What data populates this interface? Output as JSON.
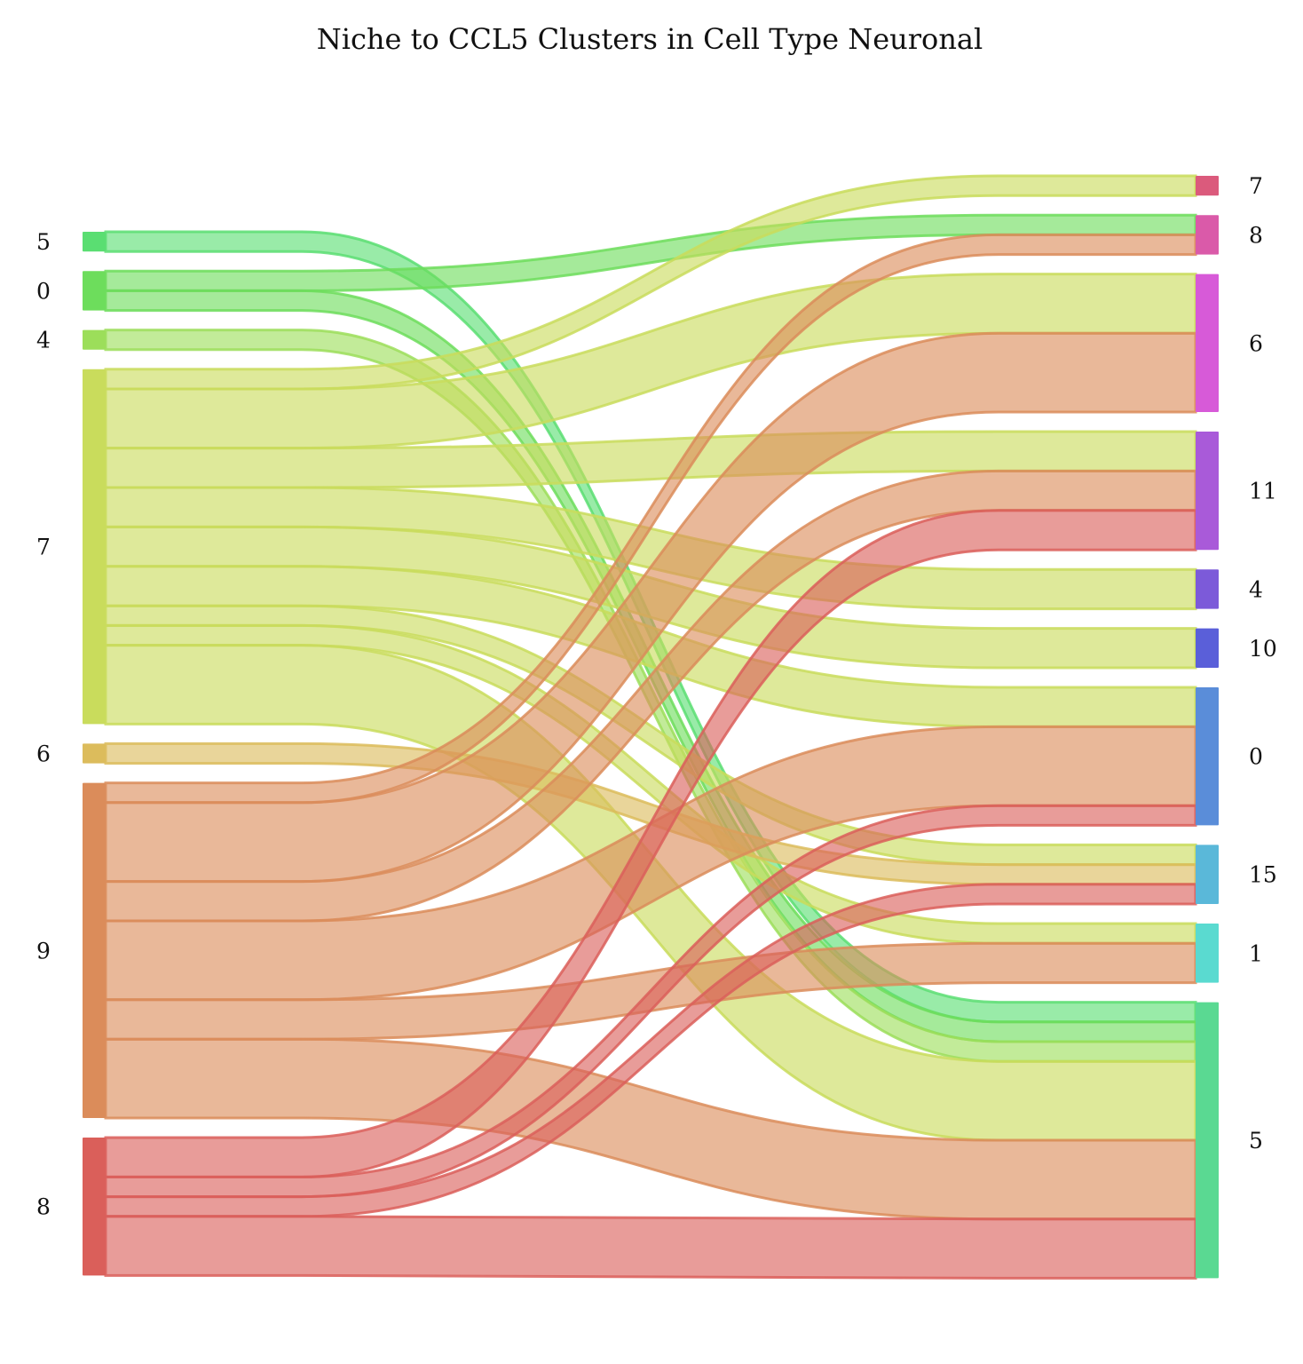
{
  "chart_data": {
    "type": "sankey",
    "title": "Niche to CCL5 Clusters in Cell Type Neuronal",
    "left_nodes": [
      {
        "id": "L5",
        "label": "5",
        "color": "#5ade72"
      },
      {
        "id": "L0",
        "label": "0",
        "color": "#6ddd5c"
      },
      {
        "id": "L4",
        "label": "4",
        "color": "#9cde5a"
      },
      {
        "id": "L7",
        "label": "7",
        "color": "#c9dc5c"
      },
      {
        "id": "L6",
        "label": "6",
        "color": "#dcbc5c"
      },
      {
        "id": "L9",
        "label": "9",
        "color": "#db8c5a"
      },
      {
        "id": "L8",
        "label": "8",
        "color": "#da5f5a"
      }
    ],
    "right_nodes": [
      {
        "id": "R7",
        "label": "7",
        "color": "#db5a7c"
      },
      {
        "id": "R8",
        "label": "8",
        "color": "#da5aa9"
      },
      {
        "id": "R6",
        "label": "6",
        "color": "#d75ad8"
      },
      {
        "id": "R11",
        "label": "11",
        "color": "#a95ad9"
      },
      {
        "id": "R4",
        "label": "4",
        "color": "#7c5ad9"
      },
      {
        "id": "R10",
        "label": "10",
        "color": "#5a5fd9"
      },
      {
        "id": "R0",
        "label": "0",
        "color": "#5a8dd9"
      },
      {
        "id": "R15",
        "label": "15",
        "color": "#5ab8d9"
      },
      {
        "id": "R1",
        "label": "1",
        "color": "#5adad0"
      },
      {
        "id": "R5",
        "label": "5",
        "color": "#5ad992"
      }
    ],
    "links": [
      {
        "source": "L5",
        "target": "R5",
        "value": 1
      },
      {
        "source": "L0",
        "target": "R8",
        "value": 1
      },
      {
        "source": "L0",
        "target": "R5",
        "value": 1
      },
      {
        "source": "L4",
        "target": "R5",
        "value": 1
      },
      {
        "source": "L7",
        "target": "R7",
        "value": 1
      },
      {
        "source": "L7",
        "target": "R6",
        "value": 3
      },
      {
        "source": "L7",
        "target": "R11",
        "value": 2
      },
      {
        "source": "L7",
        "target": "R4",
        "value": 2
      },
      {
        "source": "L7",
        "target": "R10",
        "value": 2
      },
      {
        "source": "L7",
        "target": "R0",
        "value": 2
      },
      {
        "source": "L7",
        "target": "R15",
        "value": 1
      },
      {
        "source": "L7",
        "target": "R1",
        "value": 1
      },
      {
        "source": "L7",
        "target": "R5",
        "value": 4
      },
      {
        "source": "L6",
        "target": "R15",
        "value": 1
      },
      {
        "source": "L9",
        "target": "R8",
        "value": 1
      },
      {
        "source": "L9",
        "target": "R6",
        "value": 4
      },
      {
        "source": "L9",
        "target": "R11",
        "value": 2
      },
      {
        "source": "L9",
        "target": "R0",
        "value": 4
      },
      {
        "source": "L9",
        "target": "R1",
        "value": 2
      },
      {
        "source": "L9",
        "target": "R5",
        "value": 4
      },
      {
        "source": "L8",
        "target": "R11",
        "value": 2
      },
      {
        "source": "L8",
        "target": "R0",
        "value": 1
      },
      {
        "source": "L8",
        "target": "R15",
        "value": 1
      },
      {
        "source": "L8",
        "target": "R5",
        "value": 3
      }
    ]
  }
}
